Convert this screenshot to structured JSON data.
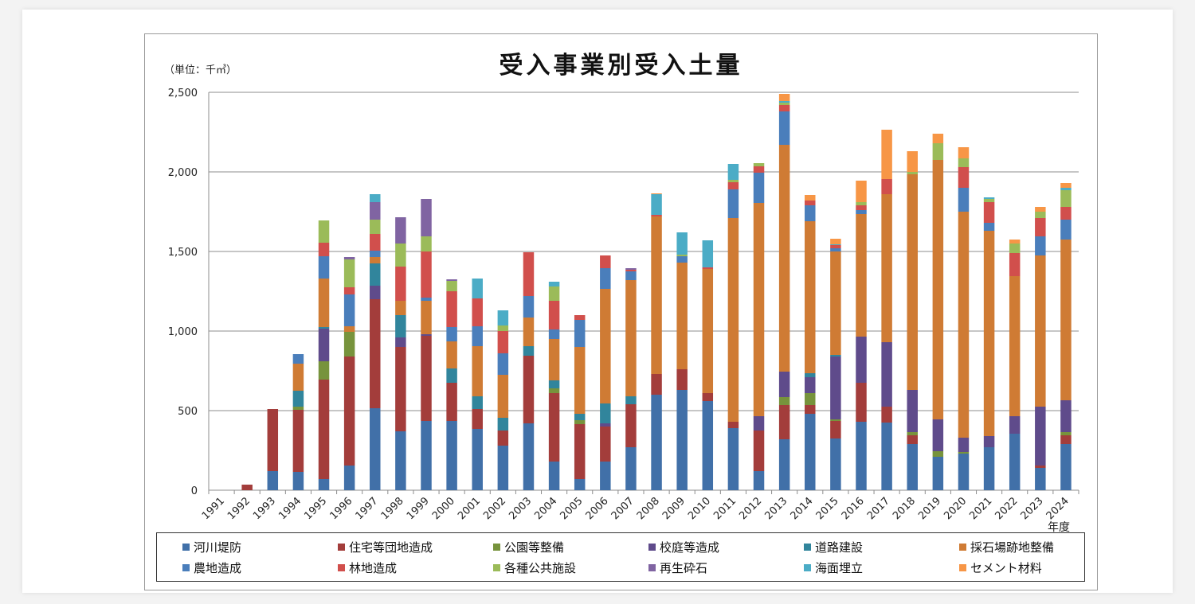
{
  "chart_data": {
    "type": "bar",
    "stacked": true,
    "title": "受入事業別受入土量",
    "ylabel": "（単位：千㎥）",
    "xlabel": "年度",
    "ylim": [
      0,
      2500
    ],
    "yticks": [
      "0",
      "500",
      "1,000",
      "1,500",
      "2,000",
      "2,500"
    ],
    "ytick_values": [
      0,
      500,
      1000,
      1500,
      2000,
      2500
    ],
    "grid": true,
    "legend_position": "bottom",
    "categories": [
      "1991",
      "1992",
      "1993",
      "1994",
      "1995",
      "1996",
      "1997",
      "1998",
      "1999",
      "2000",
      "2001",
      "2002",
      "2003",
      "2004",
      "2005",
      "2006",
      "2007",
      "2008",
      "2009",
      "2010",
      "2011",
      "2012",
      "2013",
      "2014",
      "2015",
      "2016",
      "2017",
      "2018",
      "2019",
      "2020",
      "2021",
      "2022",
      "2023",
      "2024"
    ],
    "series": [
      {
        "name": "河川堤防",
        "color": "#4170a8",
        "values": [
          0,
          0,
          120,
          115,
          70,
          155,
          515,
          370,
          435,
          435,
          385,
          280,
          420,
          180,
          70,
          180,
          270,
          600,
          630,
          560,
          390,
          120,
          320,
          480,
          325,
          430,
          425,
          290,
          210,
          230,
          270,
          355,
          140,
          290
        ]
      },
      {
        "name": "住宅等団地造成",
        "color": "#a33d3b",
        "values": [
          0,
          35,
          390,
          390,
          625,
          685,
          685,
          530,
          535,
          240,
          125,
          95,
          425,
          430,
          345,
          220,
          270,
          130,
          130,
          50,
          40,
          255,
          215,
          55,
          110,
          245,
          100,
          55,
          0,
          0,
          0,
          0,
          15,
          55
        ]
      },
      {
        "name": "公園等整備",
        "color": "#77933c",
        "values": [
          0,
          0,
          0,
          20,
          115,
          155,
          0,
          0,
          0,
          0,
          0,
          0,
          0,
          30,
          25,
          0,
          0,
          0,
          0,
          0,
          0,
          0,
          50,
          75,
          10,
          0,
          0,
          20,
          35,
          10,
          0,
          0,
          0,
          20
        ]
      },
      {
        "name": "校庭等造成",
        "color": "#5f4b8b",
        "values": [
          0,
          0,
          0,
          0,
          205,
          0,
          85,
          60,
          10,
          0,
          0,
          0,
          0,
          0,
          0,
          20,
          0,
          0,
          0,
          0,
          0,
          90,
          160,
          100,
          395,
          290,
          405,
          265,
          200,
          90,
          70,
          110,
          370,
          200
        ]
      },
      {
        "name": "道路建設",
        "color": "#31859c",
        "values": [
          0,
          0,
          0,
          100,
          10,
          0,
          140,
          140,
          0,
          90,
          80,
          80,
          60,
          50,
          40,
          125,
          50,
          0,
          0,
          0,
          0,
          0,
          0,
          25,
          10,
          0,
          0,
          0,
          0,
          0,
          0,
          0,
          0,
          0
        ]
      },
      {
        "name": "採石場跡地整備",
        "color": "#cf7b34",
        "values": [
          0,
          0,
          0,
          170,
          305,
          35,
          40,
          90,
          210,
          170,
          315,
          270,
          180,
          260,
          420,
          720,
          730,
          990,
          670,
          780,
          1280,
          1340,
          1425,
          955,
          650,
          770,
          930,
          1355,
          1630,
          1420,
          1290,
          880,
          950,
          1010
        ]
      },
      {
        "name": "農地造成",
        "color": "#4a7ebb",
        "values": [
          0,
          0,
          0,
          60,
          140,
          200,
          40,
          0,
          20,
          90,
          125,
          135,
          135,
          60,
          170,
          130,
          55,
          0,
          40,
          0,
          180,
          190,
          210,
          100,
          20,
          25,
          0,
          0,
          0,
          150,
          50,
          0,
          120,
          125
        ]
      },
      {
        "name": "林地造成",
        "color": "#d14f4c",
        "values": [
          0,
          0,
          0,
          0,
          85,
          45,
          105,
          215,
          290,
          225,
          175,
          140,
          275,
          180,
          30,
          80,
          10,
          10,
          0,
          10,
          45,
          40,
          40,
          30,
          20,
          30,
          95,
          0,
          0,
          130,
          130,
          145,
          115,
          80
        ]
      },
      {
        "name": "各種公共施設",
        "color": "#9bbb59",
        "values": [
          0,
          0,
          0,
          0,
          140,
          175,
          90,
          145,
          95,
          65,
          0,
          35,
          0,
          90,
          0,
          0,
          0,
          0,
          10,
          0,
          15,
          20,
          15,
          0,
          0,
          20,
          0,
          15,
          105,
          55,
          20,
          60,
          40,
          105
        ]
      },
      {
        "name": "再生砕石",
        "color": "#8064a2",
        "values": [
          0,
          0,
          0,
          0,
          0,
          15,
          110,
          165,
          235,
          10,
          0,
          0,
          0,
          0,
          0,
          0,
          10,
          0,
          0,
          0,
          0,
          0,
          0,
          0,
          0,
          0,
          0,
          0,
          0,
          0,
          0,
          0,
          0,
          0
        ]
      },
      {
        "name": "海面埋立",
        "color": "#4bacc6",
        "values": [
          0,
          0,
          0,
          0,
          0,
          0,
          50,
          0,
          0,
          0,
          125,
          95,
          0,
          30,
          0,
          0,
          0,
          130,
          140,
          170,
          100,
          0,
          10,
          0,
          5,
          0,
          0,
          0,
          0,
          0,
          10,
          0,
          0,
          15
        ]
      },
      {
        "name": "セメント材料",
        "color": "#f79646",
        "values": [
          0,
          0,
          0,
          0,
          0,
          0,
          0,
          0,
          0,
          0,
          0,
          0,
          0,
          0,
          0,
          0,
          0,
          5,
          0,
          0,
          0,
          0,
          45,
          35,
          35,
          135,
          310,
          130,
          60,
          70,
          0,
          25,
          30,
          30
        ]
      }
    ]
  }
}
